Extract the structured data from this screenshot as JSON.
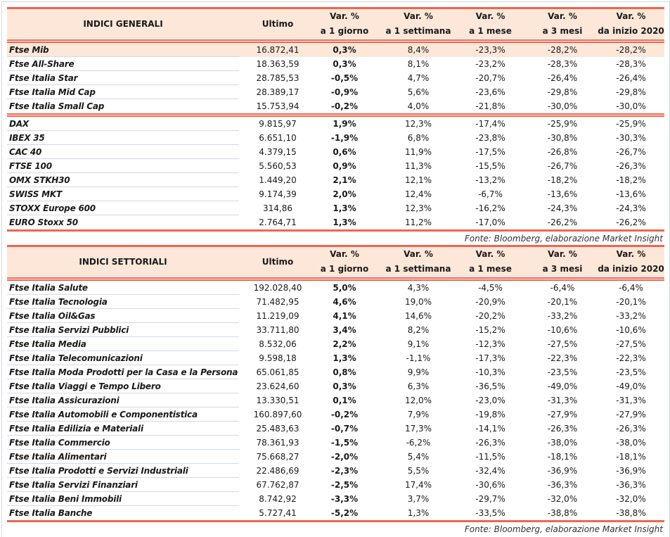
{
  "colors": {
    "accent": "#f0654f",
    "header_bg": "#fce7d9",
    "separator": "#d3d9e3"
  },
  "columns": [
    "Ultimo",
    [
      "Var. %",
      "a 1 giorno"
    ],
    [
      "Var. %",
      "a 1 settimana"
    ],
    [
      "Var. %",
      "a 1 mese"
    ],
    [
      "Var. %",
      "a 3 mesi"
    ],
    [
      "Var. %",
      "da inizio 2020"
    ]
  ],
  "tables": [
    {
      "title": "INDICI GENERALI",
      "groups": [
        [
          [
            "Ftse Mib",
            "16.872,41",
            "0,3%",
            "8,4%",
            "-23,3%",
            "-28,2%",
            "-28,2%"
          ],
          [
            "Ftse All-Share",
            "18.363,59",
            "0,3%",
            "8,1%",
            "-23,2%",
            "-28,3%",
            "-28,3%"
          ],
          [
            "Ftse Italia Star",
            "28.785,53",
            "-0,5%",
            "4,7%",
            "-20,7%",
            "-26,4%",
            "-26,4%"
          ],
          [
            "Ftse Italia Mid Cap",
            "28.389,17",
            "-0,9%",
            "5,6%",
            "-23,6%",
            "-29,8%",
            "-29,8%"
          ],
          [
            "Ftse Italia Small Cap",
            "15.753,94",
            "-0,2%",
            "4,0%",
            "-21,8%",
            "-30,0%",
            "-30,0%"
          ]
        ],
        [
          [
            "DAX",
            "9.815,97",
            "1,9%",
            "12,3%",
            "-17,4%",
            "-25,9%",
            "-25,9%"
          ],
          [
            "IBEX 35",
            "6.651,10",
            "-1,9%",
            "6,8%",
            "-23,8%",
            "-30,8%",
            "-30,3%"
          ],
          [
            "CAC 40",
            "4.379,15",
            "0,6%",
            "11,9%",
            "-17,5%",
            "-26,8%",
            "-26,7%"
          ],
          [
            "FTSE 100",
            "5.560,53",
            "0,9%",
            "11,3%",
            "-15,5%",
            "-26,7%",
            "-26,3%"
          ],
          [
            "OMX STKH30",
            "1.449,20",
            "2,1%",
            "12,1%",
            "-13,2%",
            "-18,2%",
            "-18,2%"
          ],
          [
            "SWISS MKT",
            "9.174,39",
            "2,0%",
            "12,4%",
            "-6,7%",
            "-13,6%",
            "-13,6%"
          ],
          [
            "STOXX Europe 600",
            "314,86",
            "1,3%",
            "12,3%",
            "-16,2%",
            "-24,3%",
            "-24,3%"
          ],
          [
            "EURO Stoxx 50",
            "2.764,71",
            "1,3%",
            "11,2%",
            "-17,0%",
            "-26,2%",
            "-26,2%"
          ]
        ]
      ],
      "highlighted_row": "Ftse Mib",
      "source": "Fonte: Bloomberg, elaborazione Market Insight"
    },
    {
      "title": "INDICI SETTORIALI",
      "groups": [
        [
          [
            "Ftse Italia Salute",
            "192.028,40",
            "5,0%",
            "4,3%",
            "-4,5%",
            "-6,4%",
            "-6,4%"
          ],
          [
            "Ftse Italia Tecnologia",
            "71.482,95",
            "4,6%",
            "19,0%",
            "-20,9%",
            "-20,1%",
            "-20,1%"
          ],
          [
            "Ftse Italia Oil&Gas",
            "11.219,09",
            "4,1%",
            "14,6%",
            "-20,2%",
            "-33,2%",
            "-33,2%"
          ],
          [
            "Ftse Italia Servizi Pubblici",
            "33.711,80",
            "3,4%",
            "8,2%",
            "-15,2%",
            "-10,6%",
            "-10,6%"
          ],
          [
            "Ftse Italia Media",
            "8.532,06",
            "2,2%",
            "9,1%",
            "-12,3%",
            "-27,5%",
            "-27,5%"
          ],
          [
            "Ftse Italia Telecomunicazioni",
            "9.598,18",
            "1,3%",
            "-1,1%",
            "-17,3%",
            "-22,3%",
            "-22,3%"
          ],
          [
            "Ftse Italia Moda Prodotti per la Casa e la Persona",
            "65.061,85",
            "0,8%",
            "9,9%",
            "-10,3%",
            "-23,5%",
            "-23,5%"
          ],
          [
            "Ftse Italia Viaggi e Tempo Libero",
            "23.624,60",
            "0,3%",
            "6,3%",
            "-36,5%",
            "-49,0%",
            "-49,0%"
          ],
          [
            "Ftse Italia Assicurazioni",
            "13.330,51",
            "0,1%",
            "12,0%",
            "-23,0%",
            "-31,3%",
            "-31,3%"
          ],
          [
            "Ftse Italia Automobili e Componentistica",
            "160.897,60",
            "-0,2%",
            "7,9%",
            "-19,8%",
            "-27,9%",
            "-27,9%"
          ],
          [
            "Ftse Italia Edilizia e Materiali",
            "25.483,63",
            "-0,7%",
            "17,3%",
            "-14,1%",
            "-26,3%",
            "-26,3%"
          ],
          [
            "Ftse Italia Commercio",
            "78.361,93",
            "-1,5%",
            "-6,2%",
            "-26,3%",
            "-38,0%",
            "-38,0%"
          ],
          [
            "Ftse Italia Alimentari",
            "75.668,27",
            "-2,0%",
            "5,4%",
            "-11,5%",
            "-18,1%",
            "-18,1%"
          ],
          [
            "Ftse Italia Prodotti e Servizi Industriali",
            "22.486,69",
            "-2,3%",
            "5,5%",
            "-32,4%",
            "-36,9%",
            "-36,9%"
          ],
          [
            "Ftse Italia Servizi Finanziari",
            "67.762,87",
            "-2,5%",
            "17,4%",
            "-30,6%",
            "-36,3%",
            "-36,3%"
          ],
          [
            "Ftse Italia Beni Immobili",
            "8.742,92",
            "-3,3%",
            "3,7%",
            "-29,7%",
            "-32,0%",
            "-32,0%"
          ],
          [
            "Ftse Italia Banche",
            "5.727,41",
            "-5,2%",
            "1,3%",
            "-33,5%",
            "-38,8%",
            "-38,8%"
          ]
        ]
      ],
      "highlighted_row": "",
      "source": "Fonte: Bloomberg, elaborazione Market Insight"
    }
  ]
}
